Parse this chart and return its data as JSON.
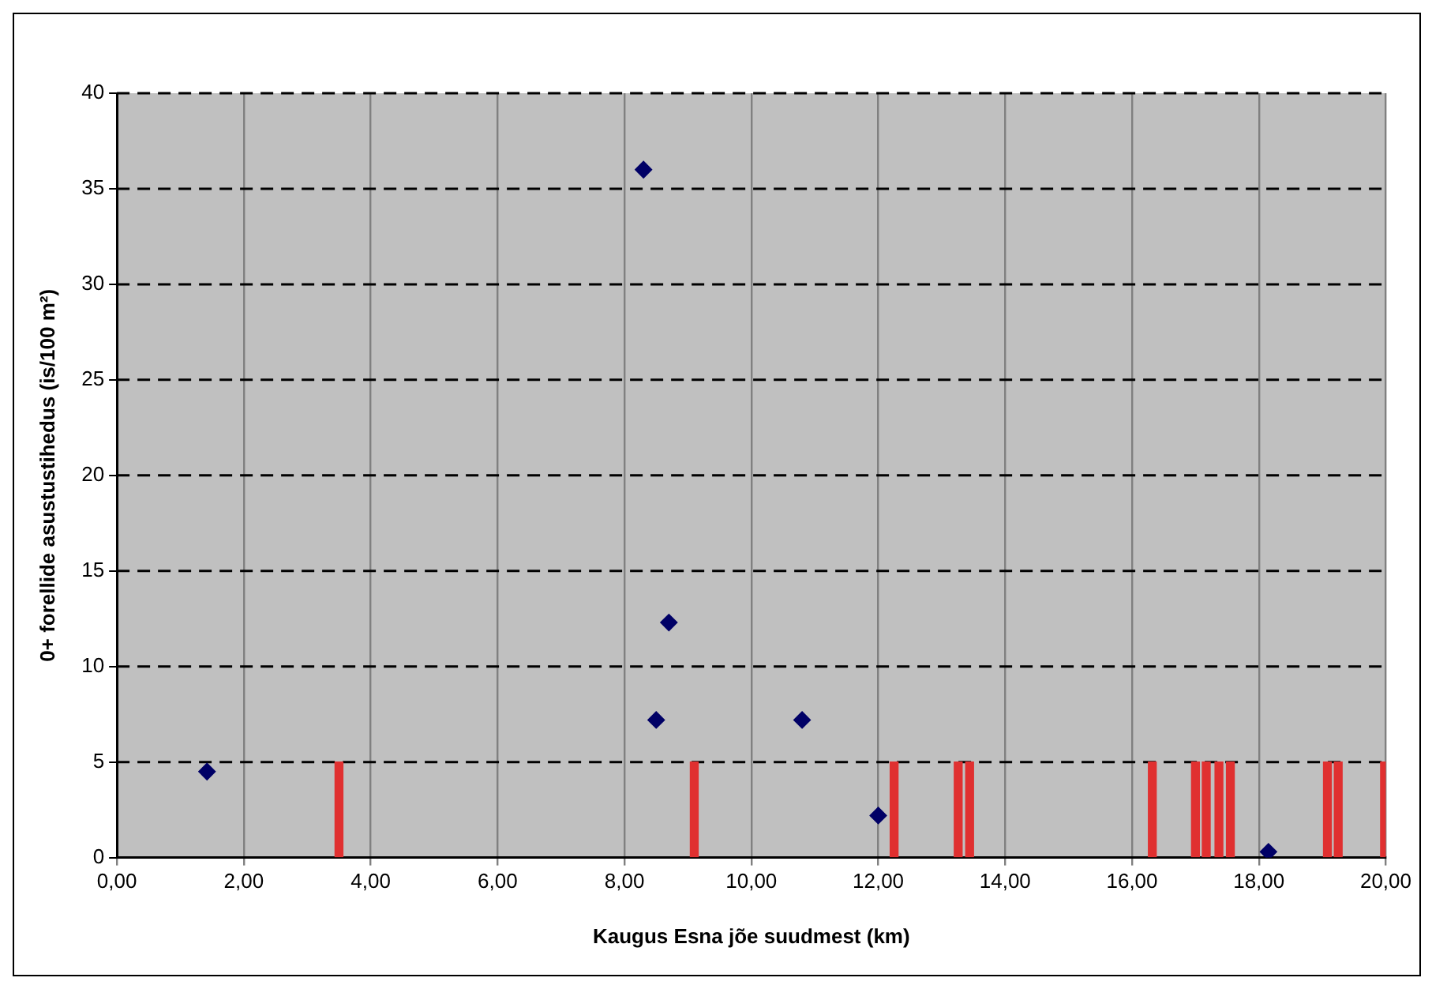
{
  "chart_data": {
    "type": "scatter",
    "xlabel": "Kaugus Esna jõe suudmest (km)",
    "ylabel": "0+ forellide asustustihedus (is/100 m²)",
    "xlim": [
      0,
      20
    ],
    "ylim": [
      0,
      40
    ],
    "xticks": [
      {
        "value": 0,
        "label": "0,00"
      },
      {
        "value": 2,
        "label": "2,00"
      },
      {
        "value": 4,
        "label": "4,00"
      },
      {
        "value": 6,
        "label": "6,00"
      },
      {
        "value": 8,
        "label": "8,00"
      },
      {
        "value": 10,
        "label": "10,00"
      },
      {
        "value": 12,
        "label": "12,00"
      },
      {
        "value": 14,
        "label": "14,00"
      },
      {
        "value": 16,
        "label": "16,00"
      },
      {
        "value": 18,
        "label": "18,00"
      },
      {
        "value": 20,
        "label": "20,00"
      }
    ],
    "yticks": [
      0,
      5,
      10,
      15,
      20,
      25,
      30,
      35,
      40
    ],
    "grid": true,
    "legend": false,
    "marker": "diamond",
    "series": [
      {
        "color": "#000066",
        "x": [
          1.42,
          8.3,
          8.7,
          8.5,
          10.8,
          12.0,
          18.15
        ],
        "values": [
          4.5,
          36,
          12.3,
          7.2,
          7.2,
          2.2,
          0.3
        ]
      },
      {
        "type": "bar",
        "color": "#e03030",
        "x": [
          3.5,
          9.1,
          12.25,
          13.26,
          13.44,
          16.32,
          17.0,
          17.17,
          17.37,
          17.55,
          19.08,
          19.25,
          19.98
        ],
        "values": [
          5,
          5,
          5,
          5,
          5,
          5,
          5,
          5,
          5,
          5,
          5,
          5,
          5
        ]
      }
    ]
  }
}
